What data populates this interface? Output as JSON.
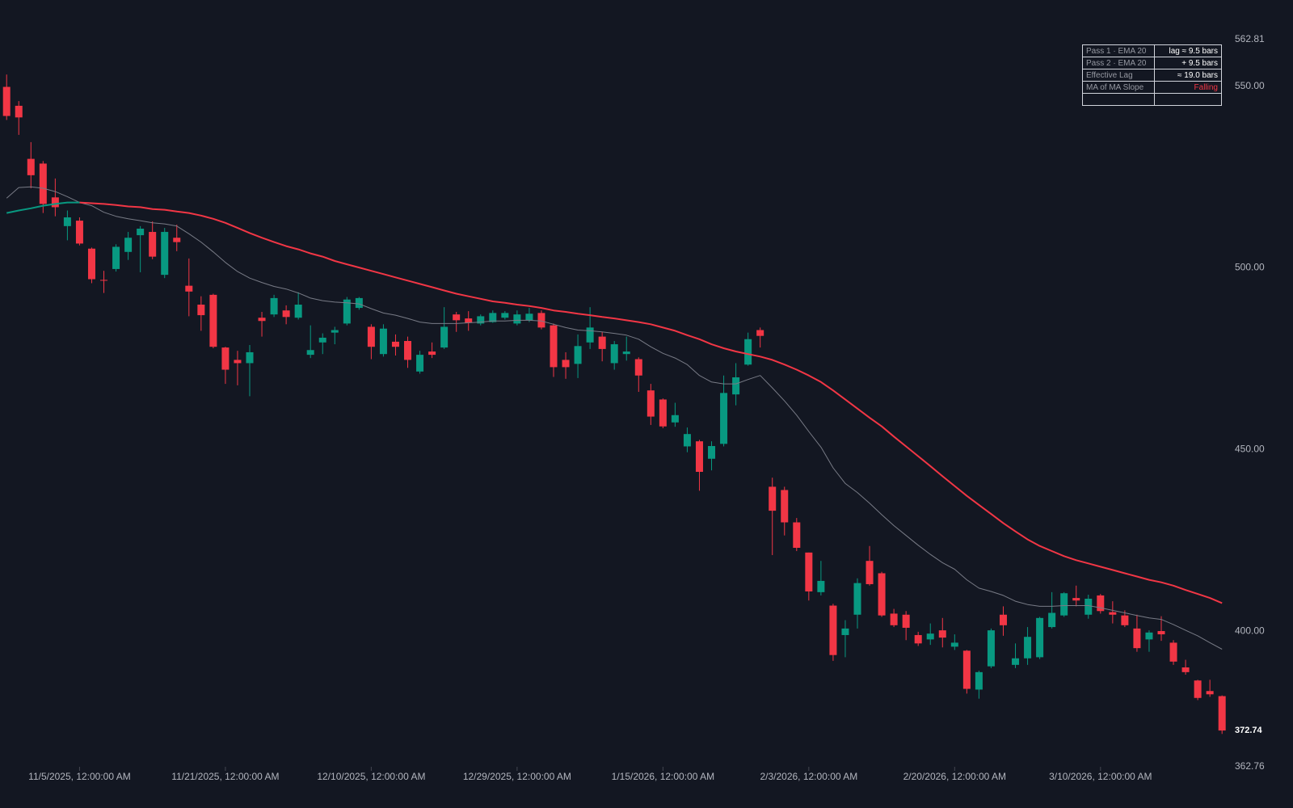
{
  "chart_data": {
    "type": "candlestick",
    "categories": [
      null,
      null,
      null,
      null,
      null,
      null,
      "11/5/2025, 12:00:00 AM",
      null,
      null,
      null,
      null,
      null,
      null,
      null,
      null,
      null,
      null,
      null,
      "11/21/2025, 12:00:00 AM",
      null,
      null,
      null,
      null,
      null,
      null,
      null,
      null,
      null,
      null,
      null,
      "12/10/2025, 12:00:00 AM",
      null,
      null,
      null,
      null,
      null,
      null,
      null,
      null,
      null,
      null,
      null,
      "12/29/2025, 12:00:00 AM",
      null,
      null,
      null,
      null,
      null,
      null,
      null,
      null,
      null,
      null,
      null,
      "1/15/2026, 12:00:00 AM",
      null,
      null,
      null,
      null,
      null,
      null,
      null,
      null,
      null,
      null,
      null,
      "2/3/2026, 12:00:00 AM",
      null,
      null,
      null,
      null,
      null,
      null,
      null,
      null,
      null,
      null,
      null,
      "2/20/2026, 12:00:00 AM",
      null,
      null,
      null,
      null,
      null,
      null,
      null,
      null,
      null,
      null,
      null,
      "3/10/2026, 12:00:00 AM",
      null,
      null,
      null,
      null,
      null,
      null,
      null,
      null,
      null,
      null
    ],
    "open": [
      549.8,
      544.6,
      530.0,
      528.7,
      519.4,
      511.5,
      513.0,
      505.3,
      496.7,
      499.7,
      504.4,
      509.0,
      509.9,
      498.1,
      508.3,
      495.1,
      489.9,
      492.6,
      478.1,
      474.7,
      473.8,
      486.3,
      487.2,
      488.3,
      486.3,
      476.1,
      479.5,
      482.2,
      484.7,
      489.0,
      483.8,
      476.3,
      479.7,
      479.9,
      471.5,
      477.0,
      478.1,
      487.2,
      486.1,
      484.7,
      485.1,
      486.3,
      484.7,
      485.6,
      487.6,
      484.2,
      474.7,
      473.6,
      479.5,
      481.1,
      473.8,
      476.3,
      474.9,
      466.3,
      463.8,
      457.5,
      450.9,
      452.3,
      447.5,
      451.6,
      465.2,
      473.4,
      482.9,
      439.8,
      438.9,
      430.0,
      421.7,
      410.8,
      407.1,
      399.0,
      404.6,
      419.4,
      416.0,
      404.9,
      404.6,
      399.0,
      397.8,
      400.3,
      395.8,
      394.7,
      384.0,
      390.4,
      404.6,
      390.8,
      392.6,
      392.9,
      401.2,
      404.4,
      409.2,
      404.6,
      409.9,
      405.3,
      404.4,
      400.8,
      397.8,
      400.1,
      396.9,
      390.1,
      386.5,
      383.6,
      382.2
    ],
    "high": [
      553.2,
      545.9,
      534.6,
      529.4,
      524.6,
      515.8,
      513.9,
      505.6,
      499.2,
      506.5,
      509.9,
      511.5,
      512.8,
      511.0,
      511.9,
      502.6,
      492.2,
      492.9,
      478.3,
      477.2,
      478.8,
      487.9,
      492.6,
      489.7,
      493.3,
      484.2,
      482.0,
      483.8,
      492.0,
      492.0,
      484.5,
      484.5,
      481.7,
      481.1,
      477.2,
      479.5,
      489.2,
      487.9,
      488.1,
      487.2,
      488.3,
      488.1,
      488.3,
      489.0,
      488.3,
      484.7,
      476.8,
      481.7,
      489.2,
      482.4,
      479.9,
      481.1,
      475.4,
      468.1,
      464.1,
      462.9,
      456.1,
      452.7,
      452.3,
      470.4,
      473.8,
      482.2,
      483.6,
      442.3,
      439.8,
      431.2,
      421.7,
      419.4,
      407.6,
      403.1,
      414.6,
      423.5,
      416.4,
      406.2,
      405.6,
      399.9,
      402.2,
      403.7,
      399.2,
      394.9,
      389.2,
      400.8,
      406.9,
      396.7,
      401.2,
      404.0,
      410.8,
      410.8,
      412.6,
      410.1,
      410.3,
      408.3,
      405.8,
      404.6,
      400.3,
      404.2,
      397.6,
      392.2,
      386.7,
      386.7,
      382.4
    ],
    "low": [
      540.7,
      536.6,
      521.9,
      515.1,
      514.2,
      507.6,
      506.2,
      495.8,
      493.1,
      499.0,
      502.2,
      498.8,
      502.4,
      497.2,
      504.6,
      486.7,
      482.7,
      477.9,
      468.1,
      467.7,
      464.7,
      481.1,
      486.5,
      484.5,
      485.8,
      475.2,
      476.3,
      479.0,
      484.2,
      488.5,
      474.9,
      475.6,
      475.9,
      472.5,
      470.9,
      475.2,
      477.7,
      482.4,
      482.7,
      484.2,
      484.9,
      485.8,
      484.2,
      485.1,
      483.1,
      470.0,
      469.5,
      469.7,
      477.7,
      474.3,
      472.0,
      474.5,
      465.9,
      456.8,
      455.9,
      456.3,
      449.3,
      438.7,
      444.3,
      450.9,
      462.2,
      473.1,
      478.1,
      421.0,
      426.4,
      422.1,
      408.5,
      409.9,
      391.9,
      392.9,
      400.8,
      412.6,
      404.0,
      401.2,
      397.6,
      396.0,
      396.3,
      395.6,
      394.9,
      382.9,
      381.5,
      389.9,
      398.8,
      389.9,
      390.8,
      392.4,
      400.8,
      404.0,
      406.9,
      403.5,
      404.9,
      402.2,
      401.2,
      394.4,
      394.4,
      397.4,
      390.8,
      388.1,
      381.1,
      382.0,
      371.8
    ],
    "close": [
      541.8,
      541.4,
      525.5,
      517.6,
      516.7,
      513.9,
      506.7,
      496.9,
      496.5,
      505.8,
      508.3,
      510.8,
      503.1,
      509.9,
      507.1,
      493.5,
      487.0,
      478.3,
      472.0,
      473.8,
      476.8,
      485.4,
      491.7,
      486.5,
      489.9,
      477.4,
      480.8,
      482.9,
      491.3,
      491.7,
      478.3,
      483.3,
      478.3,
      474.7,
      476.1,
      476.1,
      483.8,
      485.6,
      484.9,
      486.7,
      487.6,
      487.6,
      487.2,
      487.4,
      483.6,
      472.7,
      472.7,
      478.5,
      483.6,
      477.7,
      479.0,
      477.0,
      470.4,
      459.1,
      456.4,
      459.5,
      454.3,
      443.9,
      451.0,
      465.6,
      469.9,
      480.4,
      481.3,
      433.2,
      430.0,
      423.0,
      411.0,
      413.9,
      393.5,
      400.8,
      413.3,
      413.0,
      404.4,
      401.7,
      401.0,
      396.7,
      399.4,
      398.3,
      396.9,
      384.2,
      388.8,
      400.3,
      401.7,
      392.6,
      398.5,
      403.7,
      405.1,
      410.5,
      408.5,
      409.0,
      405.6,
      404.6,
      401.7,
      395.4,
      399.7,
      399.2,
      391.7,
      388.8,
      381.7,
      382.7,
      372.74
    ],
    "up_color": "#089981",
    "down_color": "#f23645",
    "lines": [
      {
        "color": "#787b86",
        "values": [
          519.2,
          522.1,
          522.3,
          521.9,
          521.0,
          519.6,
          518.0,
          517.1,
          515.3,
          514.2,
          513.5,
          513.0,
          512.4,
          512.1,
          511.5,
          509.4,
          507.1,
          504.4,
          501.5,
          499.0,
          497.2,
          496.0,
          494.9,
          494.2,
          493.1,
          491.7,
          491.0,
          490.6,
          490.4,
          490.1,
          488.8,
          487.6,
          487.0,
          486.1,
          485.1,
          484.7,
          484.7,
          484.7,
          484.9,
          485.1,
          485.4,
          485.4,
          485.6,
          485.6,
          485.4,
          484.5,
          483.6,
          482.9,
          482.7,
          482.4,
          482.0,
          481.5,
          480.4,
          478.3,
          476.5,
          475.2,
          473.4,
          470.4,
          468.6,
          468.1,
          468.1,
          469.3,
          470.4,
          467.0,
          463.4,
          459.5,
          455.0,
          450.7,
          445.0,
          440.7,
          438.2,
          435.3,
          432.1,
          429.1,
          426.4,
          423.7,
          421.2,
          418.9,
          417.1,
          414.2,
          411.9,
          411.0,
          409.9,
          408.3,
          407.4,
          406.9,
          406.9,
          407.1,
          407.1,
          407.1,
          406.5,
          405.8,
          405.1,
          404.4,
          403.7,
          403.3,
          401.9,
          400.3,
          398.8,
          396.9,
          395.1
        ]
      },
      {
        "up_color": "#089981",
        "down_color": "#f23645",
        "values": [
          515.1,
          515.8,
          516.4,
          517.1,
          517.6,
          518.0,
          518.0,
          517.8,
          517.6,
          517.3,
          516.9,
          516.7,
          516.2,
          516.0,
          515.5,
          515.1,
          514.4,
          513.5,
          512.4,
          511.0,
          509.6,
          508.3,
          507.1,
          506.0,
          505.1,
          504.0,
          503.1,
          501.9,
          501.0,
          500.1,
          499.2,
          498.3,
          497.4,
          496.5,
          495.6,
          494.7,
          493.8,
          492.9,
          492.2,
          491.5,
          490.8,
          490.4,
          489.9,
          489.5,
          489.0,
          488.3,
          487.9,
          487.4,
          487.0,
          486.5,
          486.1,
          485.6,
          485.1,
          484.5,
          483.6,
          482.7,
          481.5,
          480.4,
          479.0,
          477.9,
          477.0,
          476.3,
          475.6,
          474.7,
          473.4,
          472.0,
          470.4,
          468.6,
          466.3,
          463.8,
          461.3,
          458.8,
          456.4,
          453.6,
          450.9,
          448.2,
          445.5,
          442.7,
          440.0,
          437.3,
          434.8,
          432.3,
          429.8,
          427.5,
          425.3,
          423.5,
          422.1,
          420.7,
          419.6,
          418.7,
          417.8,
          416.9,
          416.0,
          415.1,
          414.2,
          413.5,
          412.6,
          411.4,
          410.3,
          409.2,
          407.8
        ]
      }
    ],
    "ylim": [
      362.76,
      562.81
    ],
    "yticks": [
      362.76,
      {
        "value": 400,
        "label": "400.00"
      },
      {
        "value": 450,
        "label": "450.00"
      },
      {
        "value": 500,
        "label": "500.00"
      },
      {
        "value": 550,
        "label": "550.00"
      },
      562.81
    ],
    "last_price": 372.74,
    "grid": false
  },
  "table": {
    "rows": [
      [
        "Pass 1 · EMA 20",
        "lag ≈ 9.5 bars"
      ],
      [
        "Pass 2 · EMA 20",
        "+ 9.5 bars"
      ],
      [
        "Effective Lag",
        "≈ 19.0 bars"
      ],
      [
        "MA of MA Slope",
        "Falling"
      ]
    ]
  }
}
